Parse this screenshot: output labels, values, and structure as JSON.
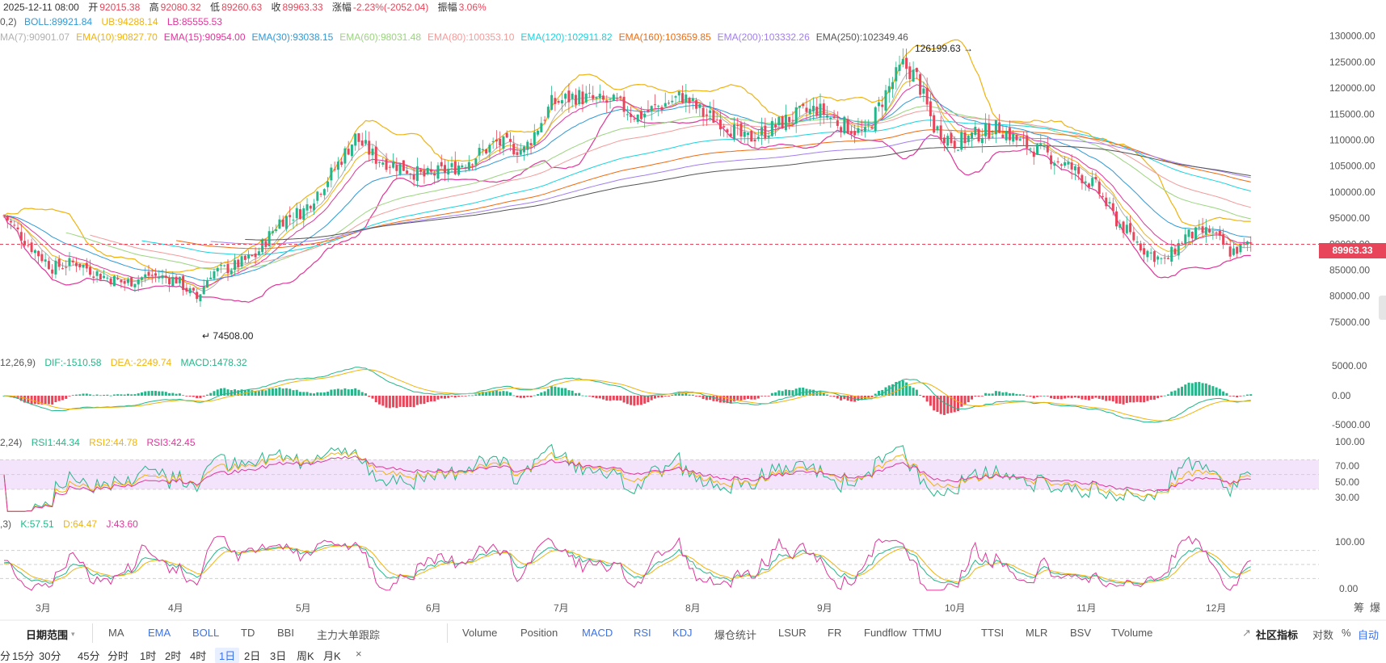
{
  "header": {
    "date": "2025-12-11 08:00",
    "open_label": "开",
    "open": "92015.38",
    "high_label": "高",
    "high": "92080.32",
    "low_label": "低",
    "low": "89260.63",
    "close_label": "收",
    "close": "89963.33",
    "change_label": "涨幅",
    "change": "-2.23%(-2052.04)",
    "amplitude_label": "振幅",
    "amplitude": "3.06%"
  },
  "boll_row": {
    "prefix": "0,2)",
    "boll": "BOLL:89921.84",
    "ub": "UB:94288.14",
    "lb": "LB:85555.53"
  },
  "ma_row": [
    {
      "text": "MA(7):90901.07",
      "color": "#b0b0b0"
    },
    {
      "text": "EMA(10):90827.70",
      "color": "#f0b30e"
    },
    {
      "text": "EMA(15):90954.00",
      "color": "#e0359b"
    },
    {
      "text": "EMA(30):93038.15",
      "color": "#2f9ad6"
    },
    {
      "text": "EMA(60):98031.48",
      "color": "#9ad47e"
    },
    {
      "text": "EMA(80):100353.10",
      "color": "#f39b9b"
    },
    {
      "text": "EMA(120):102911.82",
      "color": "#19d3df"
    },
    {
      "text": "EMA(160):103659.85",
      "color": "#f06a0f"
    },
    {
      "text": "EMA(200):103332.26",
      "color": "#a27ef0"
    },
    {
      "text": "EMA(250):102349.46",
      "color": "#555555"
    }
  ],
  "macd_row": {
    "prefix": "12,26,9)",
    "dif": "DIF:-1510.58",
    "dea": "DEA:-2249.74",
    "macd": "MACD:1478.32"
  },
  "rsi_row": {
    "prefix": "2,24)",
    "rsi1": "RSI1:44.34",
    "rsi2": "RSI2:44.78",
    "rsi3": "RSI3:42.45"
  },
  "kdj_row": {
    "prefix": ",3)",
    "k": "K:57.51",
    "d": "D:64.47",
    "j": "J:43.60"
  },
  "annotations": {
    "high_mark": "126199.63",
    "low_mark": "74508.00"
  },
  "current_price": "89963.33",
  "colors": {
    "up": "#23b68a",
    "down": "#e8455a",
    "boll_band": "#f0b30e",
    "boll_lower": "#e0359b",
    "rsi_band": "#f3e4fb"
  },
  "chart_data": {
    "type": "candlestick",
    "symbol_period": "1日",
    "x_months": [
      "3月",
      "4月",
      "5月",
      "6月",
      "7月",
      "8月",
      "9月",
      "10月",
      "11月",
      "12月"
    ],
    "price_axis": {
      "ticks": [
        "130000.00",
        "125000.00",
        "120000.00",
        "115000.00",
        "110000.00",
        "105000.00",
        "100000.00",
        "95000.00",
        "90000.00",
        "85000.00",
        "80000.00",
        "75000.00"
      ],
      "ylim": [
        72500,
        131500
      ]
    },
    "price_path_close": [
      [
        0,
        95500
      ],
      [
        7,
        90000
      ],
      [
        14,
        85500
      ],
      [
        21,
        86500
      ],
      [
        28,
        84000
      ],
      [
        35,
        82500
      ],
      [
        42,
        84000
      ],
      [
        50,
        83200
      ],
      [
        56,
        79500
      ],
      [
        60,
        84500
      ],
      [
        66,
        85500
      ],
      [
        73,
        87800
      ],
      [
        80,
        94500
      ],
      [
        87,
        96500
      ],
      [
        95,
        103500
      ],
      [
        102,
        110500
      ],
      [
        108,
        106500
      ],
      [
        115,
        105000
      ],
      [
        122,
        103000
      ],
      [
        130,
        104500
      ],
      [
        137,
        107000
      ],
      [
        143,
        109500
      ],
      [
        151,
        108000
      ],
      [
        159,
        117000
      ],
      [
        166,
        118500
      ],
      [
        172,
        117500
      ],
      [
        178,
        117000
      ],
      [
        184,
        114500
      ],
      [
        190,
        116500
      ],
      [
        197,
        118500
      ],
      [
        203,
        115000
      ],
      [
        209,
        113500
      ],
      [
        215,
        110000
      ],
      [
        222,
        112000
      ],
      [
        229,
        114500
      ],
      [
        236,
        116000
      ],
      [
        242,
        113500
      ],
      [
        250,
        111000
      ],
      [
        256,
        119000
      ],
      [
        261,
        124500
      ],
      [
        265,
        122000
      ],
      [
        270,
        112500
      ],
      [
        276,
        109500
      ],
      [
        282,
        111000
      ],
      [
        289,
        112500
      ],
      [
        295,
        109500
      ],
      [
        302,
        107500
      ],
      [
        310,
        104500
      ],
      [
        317,
        101000
      ],
      [
        323,
        94500
      ],
      [
        331,
        89000
      ],
      [
        337,
        86500
      ],
      [
        343,
        91500
      ],
      [
        350,
        92500
      ],
      [
        356,
        88500
      ],
      [
        362,
        89963
      ]
    ],
    "series_end_values": {
      "MA7": 90901.07,
      "EMA10": 90827.7,
      "EMA15": 90954.0,
      "EMA30": 93038.15,
      "EMA60": 98031.48,
      "EMA80": 100353.1,
      "EMA120": 102911.82,
      "EMA160": 103659.85,
      "EMA200": 103332.26,
      "EMA250": 102349.46,
      "BOLL": 89921.84,
      "UB": 94288.14,
      "LB": 85555.53
    },
    "macd": {
      "dif": -1510.58,
      "dea": -2249.74,
      "macd": 1478.32,
      "ticks": [
        "5000.00",
        "0.00",
        "-5000.00"
      ]
    },
    "rsi": {
      "rsi1": 44.34,
      "rsi2": 44.78,
      "rsi3": 42.45,
      "ticks": [
        "100.00",
        "70.00",
        "50.00",
        "30.00"
      ]
    },
    "kdj": {
      "k": 57.51,
      "d": 64.47,
      "j": 43.6,
      "ticks": [
        "100.00",
        "0.00"
      ]
    }
  },
  "toolbar": {
    "range_label": "日期范围",
    "indicators_main": [
      "MA",
      "EMA",
      "BOLL",
      "TD",
      "BBI",
      "主力大单跟踪"
    ],
    "indicators_sub": [
      "Volume",
      "Position",
      "MACD",
      "RSI",
      "KDJ",
      "爆仓统计",
      "LSUR",
      "FR",
      "Fundflow",
      "TTMU",
      "TTSI",
      "MLR",
      "BSV",
      "TVolume"
    ],
    "community": "社区指标",
    "log": "对数",
    "percent": "%",
    "auto": "自动",
    "corner_a": "筹",
    "corner_b": "爆"
  },
  "periods": {
    "items": [
      "分",
      "15分",
      "30分",
      "45分",
      "分时",
      "1时",
      "2时",
      "4时",
      "1日",
      "2日",
      "3日",
      "周K",
      "月K"
    ],
    "active": "1日",
    "close": "×"
  }
}
